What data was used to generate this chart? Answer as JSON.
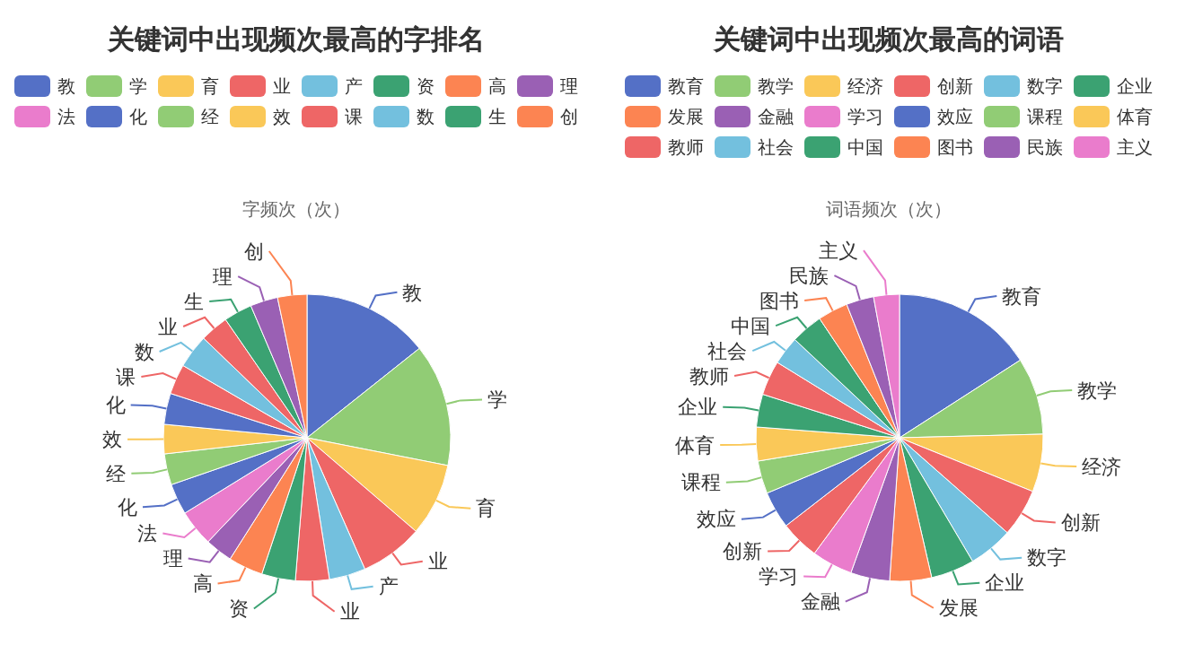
{
  "chart_data": [
    {
      "type": "pie",
      "title": "关键词中出现频次最高的字排名",
      "subtitle": "字频次（次）",
      "legend": "top",
      "categories": [
        "教",
        "学",
        "育",
        "业",
        "产",
        "业",
        "资",
        "高",
        "理",
        "法",
        "化",
        "经",
        "效",
        "化",
        "课",
        "数",
        "业",
        "生",
        "理",
        "创"
      ],
      "values": [
        14.3,
        13.8,
        8.2,
        7.1,
        4.1,
        3.8,
        3.8,
        3.9,
        3.1,
        4.1,
        3.5,
        3.5,
        3.3,
        3.5,
        3.4,
        3.8,
        3.2,
        3.2,
        3.1,
        3.3
      ],
      "colors": [
        "#5470c6",
        "#91cc75",
        "#fac858",
        "#ee6666",
        "#73c0de",
        "#ee6666",
        "#3ba272",
        "#fc8452",
        "#9a60b4",
        "#ea7ccc",
        "#5470c6",
        "#91cc75",
        "#fac858",
        "#5470c6",
        "#ee6666",
        "#73c0de",
        "#ee6666",
        "#3ba272",
        "#9a60b4",
        "#fc8452"
      ]
    },
    {
      "type": "pie",
      "title": "关键词中出现频次最高的词语",
      "subtitle": "词语频次（次）",
      "legend": "top",
      "categories": [
        "教育",
        "教学",
        "经济",
        "创新",
        "数字",
        "企业",
        "发展",
        "金融",
        "学习",
        "创新",
        "效应",
        "课程",
        "体育",
        "企业",
        "教师",
        "社会",
        "中国",
        "图书",
        "民族",
        "主义"
      ],
      "values": [
        15.9,
        8.7,
        6.5,
        5.4,
        5.0,
        4.9,
        4.7,
        4.4,
        4.6,
        4.4,
        4.2,
        3.7,
        3.8,
        3.7,
        3.9,
        3.2,
        3.6,
        3.4,
        3.1,
        2.9
      ],
      "colors": [
        "#5470c6",
        "#91cc75",
        "#fac858",
        "#ee6666",
        "#73c0de",
        "#3ba272",
        "#fc8452",
        "#9a60b4",
        "#ea7ccc",
        "#ee6666",
        "#5470c6",
        "#91cc75",
        "#fac858",
        "#3ba272",
        "#ee6666",
        "#73c0de",
        "#3ba272",
        "#fc8452",
        "#9a60b4",
        "#ea7ccc"
      ]
    }
  ]
}
